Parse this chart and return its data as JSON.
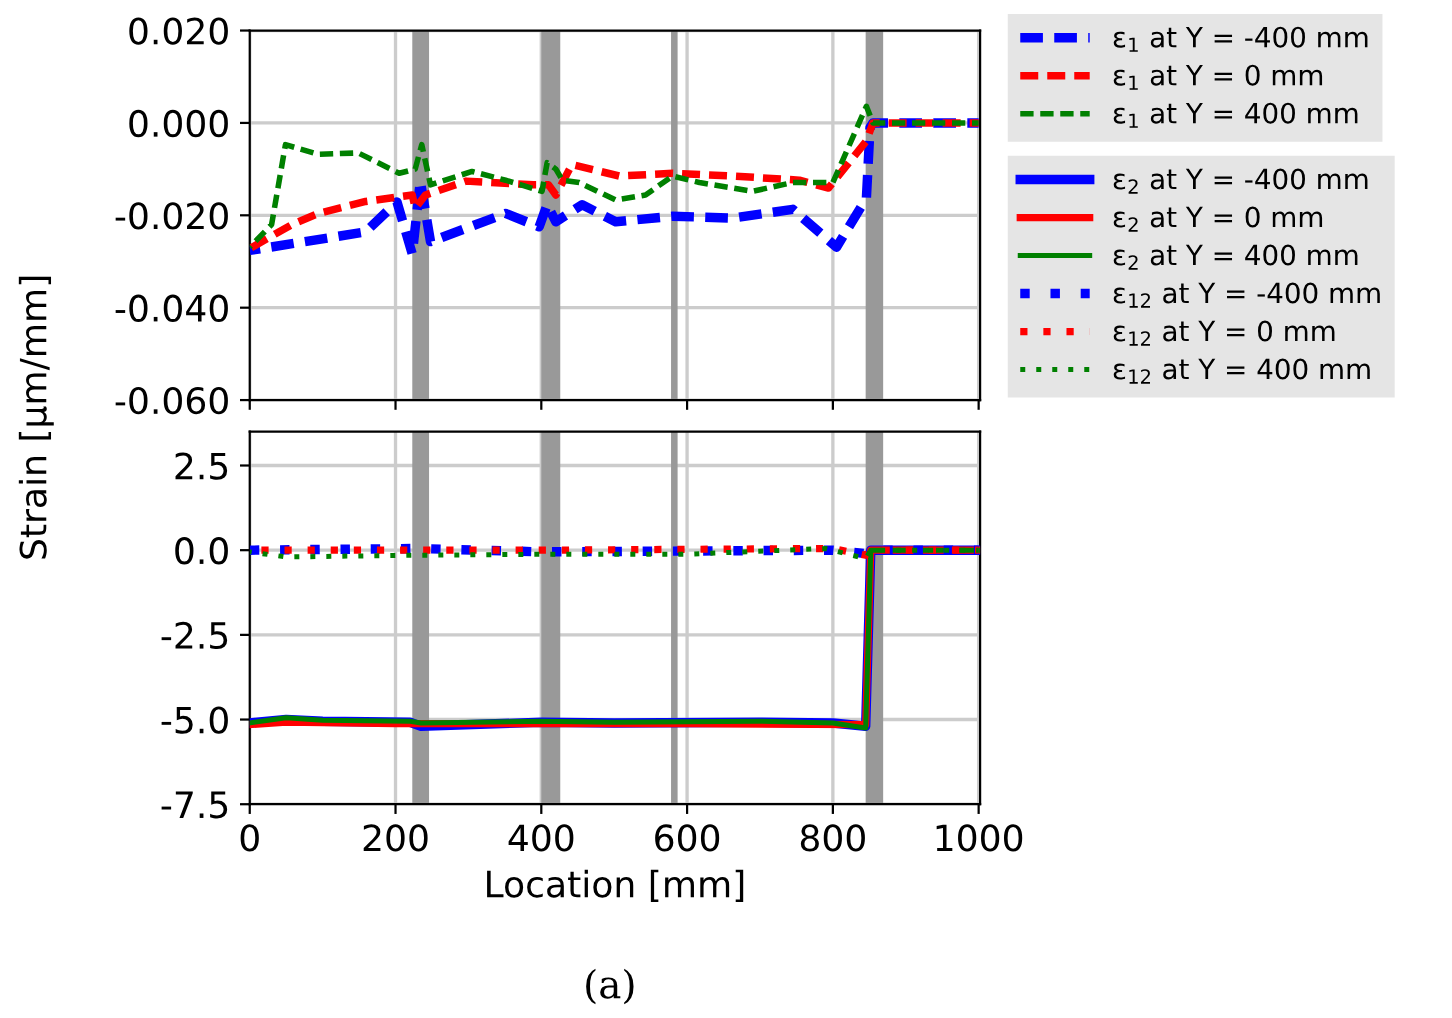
{
  "chart_data": [
    {
      "type": "line",
      "ylabel": "Strain [μm/mm]",
      "xlim": [
        0,
        1002
      ],
      "ylim": [
        -0.06,
        0.02
      ],
      "xticks": [
        0,
        200,
        400,
        600,
        800,
        1000
      ],
      "yticks": [
        {
          "value": -0.06,
          "label": "-0.060"
        },
        {
          "value": -0.04,
          "label": "-0.040"
        },
        {
          "value": -0.02,
          "label": "-0.020"
        },
        {
          "value": 0,
          "label": "0.000"
        },
        {
          "value": 0.02,
          "label": "0.020"
        }
      ],
      "tick_labels": "y",
      "grid": true,
      "legend": "right",
      "bands": [
        {
          "axis": "x",
          "from": 223,
          "to": 246,
          "color": "#999999"
        },
        {
          "axis": "x",
          "from": 400,
          "to": 426,
          "color": "#999999"
        },
        {
          "axis": "x",
          "from": 578,
          "to": 587,
          "color": "#999999"
        },
        {
          "axis": "x",
          "from": 845,
          "to": 869,
          "color": "#999999"
        }
      ],
      "series": [
        {
          "name": "ε$_{1}$ at Y = -400 mm",
          "color": "#0000ff",
          "line_style": "dashed",
          "x": [
            0,
            159,
            202,
            223,
            234,
            248,
            351,
            397,
            408,
            420,
            456,
            502,
            580,
            663,
            745,
            805,
            846,
            851,
            855,
            1000
          ],
          "values": [
            -0.0276,
            -0.0236,
            -0.0171,
            -0.0284,
            -0.0126,
            -0.0257,
            -0.0196,
            -0.0225,
            -0.0177,
            -0.0214,
            -0.0177,
            -0.0214,
            -0.0202,
            -0.0206,
            -0.0187,
            -0.0269,
            -0.0163,
            -0.001,
            0,
            0
          ]
        },
        {
          "name": "ε$_{1}$ at Y = 0 mm",
          "color": "#ff0000",
          "line_style": "dashed",
          "x": [
            0,
            58,
            94,
            159,
            223,
            227,
            241,
            297,
            389,
            410,
            420,
            442,
            507,
            580,
            663,
            754,
            794,
            846,
            855,
            1000
          ],
          "values": [
            -0.0272,
            -0.022,
            -0.0196,
            -0.017,
            -0.0156,
            -0.0185,
            -0.0156,
            -0.0126,
            -0.0134,
            -0.0134,
            -0.0156,
            -0.009,
            -0.0115,
            -0.0109,
            -0.0115,
            -0.0124,
            -0.0141,
            -0.0039,
            0,
            0
          ]
        },
        {
          "name": "ε$_{1}$ at Y = 400 mm",
          "color": "#008000",
          "line_style": "dashed",
          "x": [
            0,
            30,
            49,
            94,
            149,
            205,
            227,
            236,
            248,
            305,
            351,
            401,
            408,
            420,
            429,
            452,
            502,
            543,
            580,
            617,
            690,
            745,
            800,
            846,
            855,
            1000
          ],
          "values": [
            -0.0269,
            -0.022,
            -0.0047,
            -0.0068,
            -0.0065,
            -0.0109,
            -0.01,
            -0.0047,
            -0.0134,
            -0.0105,
            -0.0124,
            -0.0148,
            -0.0086,
            -0.01,
            -0.0124,
            -0.0129,
            -0.0167,
            -0.0156,
            -0.0115,
            -0.0129,
            -0.0148,
            -0.0129,
            -0.0129,
            0.0036,
            0,
            0
          ]
        }
      ]
    },
    {
      "type": "line",
      "xlabel": "Location [mm]",
      "xlim": [
        0,
        1002
      ],
      "ylim": [
        -7.5,
        3.5
      ],
      "xticks": [
        0,
        200,
        400,
        600,
        800,
        1000
      ],
      "yticks": [
        {
          "value": -7.5,
          "label": "-7.5"
        },
        {
          "value": -5,
          "label": "-5.0"
        },
        {
          "value": -2.5,
          "label": "-2.5"
        },
        {
          "value": 0,
          "label": "0.0"
        },
        {
          "value": 2.5,
          "label": "2.5"
        }
      ],
      "grid": true,
      "legend": "right",
      "annotations": [
        "(a)"
      ],
      "bands": [
        {
          "axis": "x",
          "from": 223,
          "to": 246,
          "color": "#999999"
        },
        {
          "axis": "x",
          "from": 400,
          "to": 426,
          "color": "#999999"
        },
        {
          "axis": "x",
          "from": 578,
          "to": 587,
          "color": "#999999"
        },
        {
          "axis": "x",
          "from": 845,
          "to": 869,
          "color": "#999999"
        }
      ],
      "series": [
        {
          "name": "ε$_{2}$ at Y = -400 mm",
          "color": "#0000ff",
          "line_style": "solid",
          "x": [
            0,
            50,
            100,
            220,
            235,
            400,
            500,
            700,
            800,
            845,
            852,
            1000
          ],
          "values": [
            -5.1,
            -5.0,
            -5.05,
            -5.08,
            -5.2,
            -5.08,
            -5.1,
            -5.08,
            -5.1,
            -5.2,
            0,
            0
          ]
        },
        {
          "name": "ε$_{2}$ at Y = 0 mm",
          "color": "#ff0000",
          "line_style": "solid",
          "x": [
            0,
            50,
            200,
            400,
            600,
            845,
            852,
            1000
          ],
          "values": [
            -5.15,
            -5.08,
            -5.12,
            -5.12,
            -5.12,
            -5.15,
            0,
            0
          ]
        },
        {
          "name": "ε$_{2}$ at Y = 400 mm",
          "color": "#008000",
          "line_style": "solid",
          "x": [
            0,
            50,
            100,
            220,
            235,
            400,
            500,
            700,
            800,
            845,
            852,
            1000
          ],
          "values": [
            -5.1,
            -4.95,
            -5.02,
            -5.05,
            -5.1,
            -5.05,
            -5.08,
            -5.05,
            -5.1,
            -5.25,
            0,
            0
          ]
        },
        {
          "name": "ε$_{12}$ at Y = -400 mm",
          "color": "#0000ff",
          "line_style": "dotted",
          "x": [
            0,
            230,
            400,
            800,
            845,
            852,
            1000
          ],
          "values": [
            0,
            0.05,
            -0.05,
            0,
            -0.1,
            0,
            0
          ]
        },
        {
          "name": "ε$_{12}$ at Y = 0 mm",
          "color": "#ff0000",
          "line_style": "dotted",
          "x": [
            0,
            400,
            800,
            845,
            852,
            1000
          ],
          "values": [
            0,
            0,
            0.05,
            -0.15,
            0,
            0
          ]
        },
        {
          "name": "ε$_{12}$ at Y = 400 mm",
          "color": "#008000",
          "line_style": "dotted",
          "x": [
            0,
            50,
            220,
            400,
            600,
            790,
            845,
            852,
            1000
          ],
          "values": [
            -0.05,
            -0.2,
            -0.15,
            -0.12,
            -0.12,
            0.05,
            -0.25,
            0,
            0
          ]
        }
      ]
    }
  ]
}
